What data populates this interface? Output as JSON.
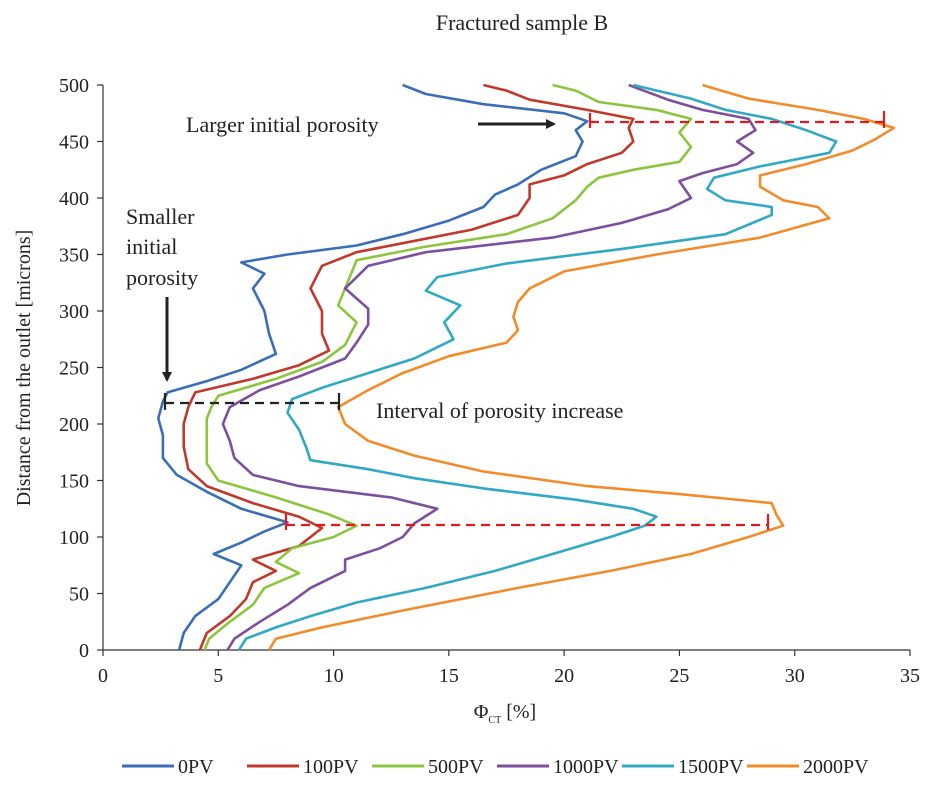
{
  "chart_data": {
    "type": "line",
    "title": "Fractured sample  B",
    "xlabel_symbol": "Φ",
    "xlabel_sub": "CT",
    "xlabel_unit": " [%]",
    "ylabel": "Distance from the outlet [microns]",
    "xlim": [
      0,
      35
    ],
    "ylim": [
      0,
      500
    ],
    "xticks": [
      0,
      5,
      10,
      15,
      20,
      25,
      30,
      35
    ],
    "yticks": [
      0,
      50,
      100,
      150,
      200,
      250,
      300,
      350,
      400,
      450,
      500
    ],
    "grid": false,
    "legend_position": "bottom",
    "series": [
      {
        "name": "0PV",
        "color": "#3a6fb7",
        "points": [
          [
            3.3,
            0
          ],
          [
            3.5,
            15
          ],
          [
            4.0,
            30
          ],
          [
            5.0,
            45
          ],
          [
            5.5,
            60
          ],
          [
            6.0,
            75
          ],
          [
            4.8,
            85
          ],
          [
            6.0,
            95
          ],
          [
            7.0,
            105
          ],
          [
            8.0,
            113
          ],
          [
            6.0,
            125
          ],
          [
            4.5,
            140
          ],
          [
            3.2,
            155
          ],
          [
            2.6,
            170
          ],
          [
            2.6,
            190
          ],
          [
            2.4,
            205
          ],
          [
            2.6,
            220
          ],
          [
            2.8,
            228
          ],
          [
            4.5,
            238
          ],
          [
            6.0,
            248
          ],
          [
            7.5,
            262
          ],
          [
            7.2,
            280
          ],
          [
            7.0,
            300
          ],
          [
            6.5,
            320
          ],
          [
            7.0,
            333
          ],
          [
            6.0,
            343
          ],
          [
            8.0,
            350
          ],
          [
            11.0,
            358
          ],
          [
            13.0,
            368
          ],
          [
            15.0,
            380
          ],
          [
            16.5,
            392
          ],
          [
            17.0,
            403
          ],
          [
            18.0,
            412
          ],
          [
            19.0,
            425
          ],
          [
            20.5,
            437
          ],
          [
            20.8,
            450
          ],
          [
            20.5,
            460
          ],
          [
            21.0,
            468
          ],
          [
            20.0,
            475
          ],
          [
            16.5,
            483
          ],
          [
            14.0,
            492
          ],
          [
            13.0,
            500
          ]
        ]
      },
      {
        "name": "100PV",
        "color": "#c0392b",
        "points": [
          [
            4.2,
            0
          ],
          [
            4.5,
            15
          ],
          [
            5.5,
            30
          ],
          [
            6.2,
            45
          ],
          [
            6.5,
            60
          ],
          [
            7.5,
            70
          ],
          [
            6.5,
            80
          ],
          [
            8.5,
            92
          ],
          [
            9.5,
            108
          ],
          [
            8.5,
            118
          ],
          [
            6.5,
            130
          ],
          [
            4.5,
            145
          ],
          [
            3.7,
            160
          ],
          [
            3.5,
            180
          ],
          [
            3.5,
            200
          ],
          [
            3.7,
            215
          ],
          [
            4.0,
            228
          ],
          [
            6.5,
            240
          ],
          [
            8.5,
            252
          ],
          [
            9.8,
            265
          ],
          [
            9.5,
            280
          ],
          [
            9.5,
            300
          ],
          [
            9.0,
            320
          ],
          [
            9.5,
            340
          ],
          [
            11.0,
            352
          ],
          [
            13.0,
            360
          ],
          [
            16.0,
            372
          ],
          [
            18.0,
            385
          ],
          [
            18.5,
            400
          ],
          [
            18.5,
            412
          ],
          [
            20.0,
            420
          ],
          [
            21.0,
            430
          ],
          [
            22.5,
            440
          ],
          [
            23.0,
            450
          ],
          [
            22.8,
            462
          ],
          [
            23.0,
            470
          ],
          [
            21.0,
            478
          ],
          [
            18.5,
            487
          ],
          [
            17.5,
            495
          ],
          [
            16.5,
            500
          ]
        ]
      },
      {
        "name": "500PV",
        "color": "#8cc63f",
        "points": [
          [
            4.4,
            0
          ],
          [
            4.6,
            10
          ],
          [
            5.5,
            25
          ],
          [
            6.5,
            40
          ],
          [
            7.0,
            55
          ],
          [
            8.5,
            68
          ],
          [
            7.5,
            78
          ],
          [
            8.2,
            90
          ],
          [
            10.0,
            100
          ],
          [
            11.0,
            110
          ],
          [
            9.8,
            120
          ],
          [
            7.5,
            135
          ],
          [
            5.0,
            150
          ],
          [
            4.5,
            165
          ],
          [
            4.5,
            185
          ],
          [
            4.5,
            205
          ],
          [
            4.7,
            215
          ],
          [
            5.0,
            225
          ],
          [
            7.5,
            240
          ],
          [
            9.5,
            255
          ],
          [
            10.5,
            270
          ],
          [
            11.0,
            290
          ],
          [
            10.2,
            305
          ],
          [
            10.5,
            320
          ],
          [
            11.0,
            345
          ],
          [
            14.0,
            357
          ],
          [
            17.5,
            368
          ],
          [
            19.5,
            382
          ],
          [
            20.5,
            398
          ],
          [
            21.0,
            410
          ],
          [
            21.5,
            418
          ],
          [
            23.0,
            425
          ],
          [
            25.0,
            432
          ],
          [
            25.5,
            445
          ],
          [
            25.0,
            458
          ],
          [
            25.5,
            470
          ],
          [
            24.0,
            478
          ],
          [
            21.5,
            485
          ],
          [
            20.5,
            495
          ],
          [
            19.5,
            500
          ]
        ]
      },
      {
        "name": "1000PV",
        "color": "#7d4f9e",
        "points": [
          [
            5.4,
            0
          ],
          [
            5.7,
            10
          ],
          [
            6.8,
            25
          ],
          [
            8.0,
            40
          ],
          [
            9.0,
            55
          ],
          [
            10.5,
            70
          ],
          [
            10.5,
            80
          ],
          [
            12.0,
            90
          ],
          [
            13.0,
            100
          ],
          [
            13.5,
            112
          ],
          [
            14.5,
            125
          ],
          [
            12.5,
            135
          ],
          [
            8.5,
            145
          ],
          [
            6.5,
            155
          ],
          [
            5.7,
            170
          ],
          [
            5.5,
            185
          ],
          [
            5.2,
            200
          ],
          [
            5.5,
            215
          ],
          [
            6.8,
            230
          ],
          [
            8.5,
            242
          ],
          [
            10.5,
            258
          ],
          [
            11.0,
            272
          ],
          [
            11.5,
            288
          ],
          [
            11.5,
            302
          ],
          [
            10.5,
            320
          ],
          [
            11.5,
            340
          ],
          [
            14.0,
            352
          ],
          [
            19.5,
            365
          ],
          [
            22.5,
            378
          ],
          [
            24.5,
            390
          ],
          [
            25.5,
            400
          ],
          [
            25.0,
            415
          ],
          [
            26.0,
            422
          ],
          [
            27.5,
            430
          ],
          [
            28.2,
            440
          ],
          [
            27.5,
            450
          ],
          [
            28.3,
            460
          ],
          [
            28.0,
            470
          ],
          [
            26.0,
            478
          ],
          [
            24.5,
            487
          ],
          [
            22.8,
            500
          ]
        ]
      },
      {
        "name": "1500PV",
        "color": "#31a9c5",
        "points": [
          [
            5.9,
            0
          ],
          [
            6.2,
            10
          ],
          [
            7.5,
            20
          ],
          [
            9.0,
            30
          ],
          [
            11.0,
            42
          ],
          [
            14.0,
            55
          ],
          [
            17.0,
            70
          ],
          [
            19.5,
            85
          ],
          [
            22.0,
            100
          ],
          [
            23.5,
            110
          ],
          [
            24.0,
            118
          ],
          [
            23.0,
            125
          ],
          [
            20.5,
            133
          ],
          [
            16.5,
            143
          ],
          [
            13.5,
            152
          ],
          [
            11.5,
            160
          ],
          [
            9.0,
            168
          ],
          [
            8.8,
            180
          ],
          [
            8.5,
            195
          ],
          [
            8.0,
            210
          ],
          [
            8.2,
            222
          ],
          [
            9.5,
            232
          ],
          [
            11.5,
            245
          ],
          [
            13.5,
            258
          ],
          [
            15.2,
            275
          ],
          [
            14.8,
            290
          ],
          [
            15.5,
            305
          ],
          [
            14.0,
            318
          ],
          [
            14.5,
            330
          ],
          [
            17.5,
            342
          ],
          [
            22.5,
            355
          ],
          [
            27.0,
            368
          ],
          [
            29.0,
            385
          ],
          [
            29.0,
            392
          ],
          [
            27.0,
            398
          ],
          [
            26.2,
            408
          ],
          [
            26.5,
            418
          ],
          [
            28.5,
            428
          ],
          [
            31.5,
            440
          ],
          [
            31.8,
            450
          ],
          [
            30.5,
            460
          ],
          [
            29.0,
            470
          ],
          [
            27.0,
            478
          ],
          [
            25.5,
            488
          ],
          [
            23.0,
            500
          ]
        ]
      },
      {
        "name": "2000PV",
        "color": "#f28c2b",
        "points": [
          [
            7.2,
            0
          ],
          [
            7.5,
            10
          ],
          [
            9.5,
            20
          ],
          [
            13.0,
            35
          ],
          [
            18.0,
            55
          ],
          [
            22.0,
            70
          ],
          [
            25.5,
            85
          ],
          [
            28.0,
            100
          ],
          [
            29.5,
            110
          ],
          [
            29.2,
            120
          ],
          [
            29.0,
            130
          ],
          [
            25.0,
            138
          ],
          [
            21.0,
            145
          ],
          [
            16.5,
            158
          ],
          [
            13.5,
            172
          ],
          [
            11.5,
            185
          ],
          [
            10.5,
            200
          ],
          [
            10.2,
            215
          ],
          [
            11.5,
            230
          ],
          [
            13.0,
            245
          ],
          [
            15.0,
            260
          ],
          [
            17.5,
            272
          ],
          [
            18.0,
            283
          ],
          [
            17.8,
            295
          ],
          [
            18.0,
            308
          ],
          [
            18.5,
            320
          ],
          [
            20.0,
            335
          ],
          [
            24.0,
            350
          ],
          [
            28.5,
            365
          ],
          [
            31.5,
            382
          ],
          [
            31.0,
            392
          ],
          [
            29.5,
            398
          ],
          [
            28.5,
            410
          ],
          [
            28.5,
            420
          ],
          [
            30.5,
            430
          ],
          [
            32.5,
            442
          ],
          [
            33.5,
            452
          ],
          [
            34.3,
            462
          ],
          [
            33.0,
            470
          ],
          [
            31.0,
            478
          ],
          [
            28.0,
            488
          ],
          [
            26.0,
            500
          ]
        ]
      }
    ],
    "annotations": {
      "larger_label": "Larger initial porosity",
      "smaller_label_lines": [
        "Smaller",
        "initial",
        "porosity"
      ],
      "interval_label": "Interval of porosity increase"
    }
  }
}
